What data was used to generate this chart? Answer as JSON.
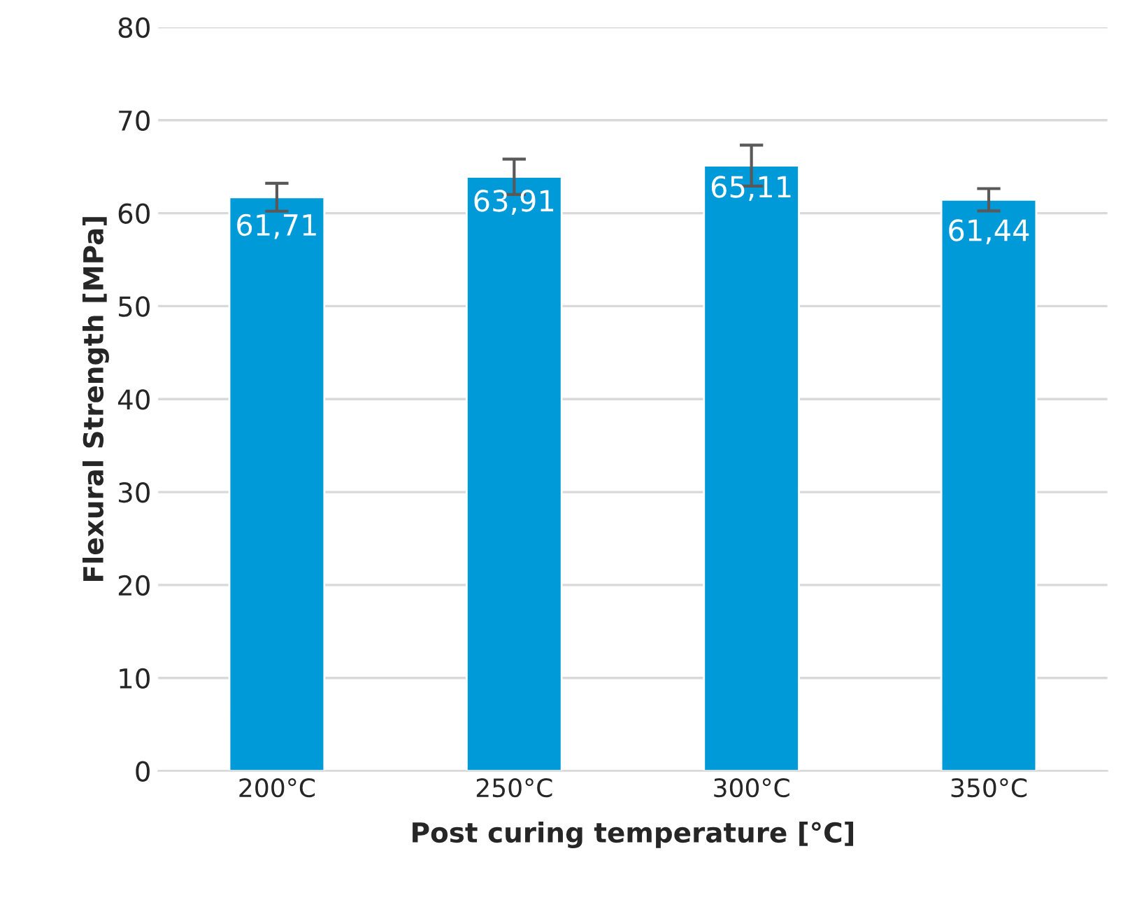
{
  "chart_data": {
    "type": "bar",
    "xlabel": "Post curing temperature [°C]",
    "ylabel": "Flexural Strength [MPa]",
    "categories": [
      "200°C",
      "250°C",
      "300°C",
      "350°C"
    ],
    "values": [
      61.71,
      63.91,
      65.11,
      61.44
    ],
    "errors": [
      1.5,
      1.9,
      2.2,
      1.2
    ],
    "value_labels": [
      "61,71",
      "63,91",
      "65,11",
      "61,44"
    ],
    "color": "#009ad8",
    "ylim": [
      0,
      80
    ],
    "yticks": [
      0,
      10,
      20,
      30,
      40,
      50,
      60,
      70,
      80
    ],
    "grid": "y"
  }
}
